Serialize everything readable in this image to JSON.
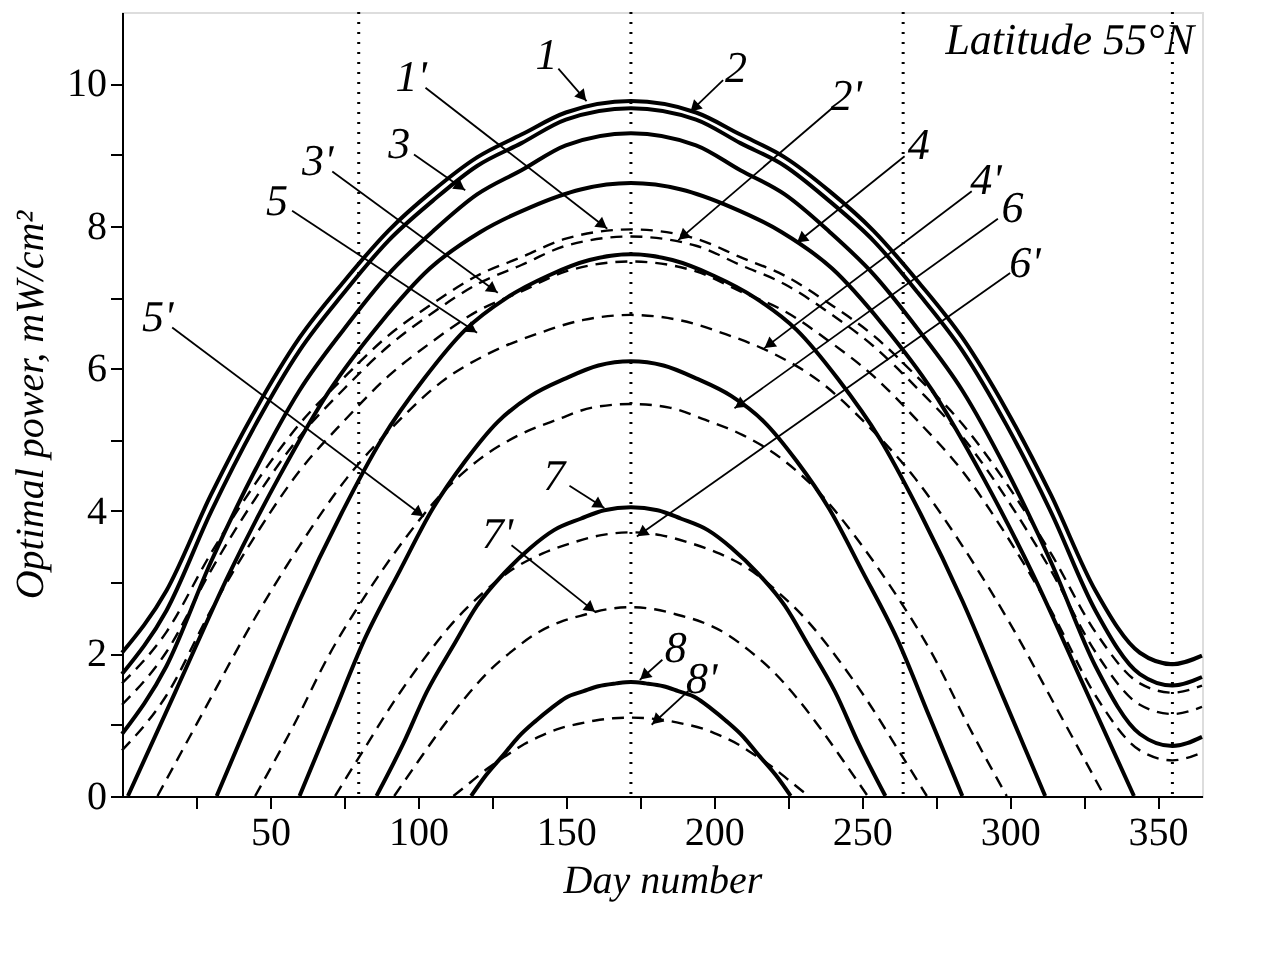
{
  "chart_data": {
    "type": "line",
    "xlabel": "Day number",
    "ylabel": "Optimal power, mW/cm²",
    "x": [
      0,
      15,
      30,
      45,
      60,
      75,
      90,
      105,
      120,
      135,
      150,
      172,
      194,
      209,
      224,
      239,
      254,
      269,
      284,
      299,
      314,
      329,
      344,
      355,
      365
    ],
    "xlim": [
      0,
      365
    ],
    "xticks": [
      {
        "value": 25,
        "label": null
      },
      50,
      {
        "value": 75,
        "label": null
      },
      100,
      {
        "value": 125,
        "label": null
      },
      150,
      {
        "value": 175,
        "label": null
      },
      200,
      {
        "value": 225,
        "label": null
      },
      250,
      {
        "value": 275,
        "label": null
      },
      300,
      {
        "value": 325,
        "label": null
      },
      350
    ],
    "ylim": [
      0,
      11
    ],
    "yticks": [
      0,
      {
        "value": 1,
        "label": null
      },
      2,
      {
        "value": 3,
        "label": null
      },
      4,
      {
        "value": 5,
        "label": null
      },
      6,
      {
        "value": 7,
        "label": null
      },
      8,
      {
        "value": 9,
        "label": null
      },
      10
    ],
    "grid": false,
    "series": [
      {
        "color": "#000000",
        "line_style": "solid",
        "values": [
          2.01,
          2.88,
          4.22,
          5.41,
          6.43,
          7.22,
          7.93,
          8.49,
          8.96,
          9.28,
          9.59,
          9.75,
          9.59,
          9.28,
          8.96,
          8.49,
          7.93,
          7.22,
          6.43,
          5.41,
          4.22,
          2.88,
          2.01,
          1.85,
          1.97
        ]
      },
      {
        "color": "#000000",
        "line_style": "solid",
        "values": [
          1.71,
          2.6,
          3.98,
          5.2,
          6.25,
          7.06,
          7.79,
          8.35,
          8.84,
          9.16,
          9.49,
          9.65,
          9.49,
          9.16,
          8.84,
          8.35,
          7.79,
          7.06,
          6.25,
          5.2,
          3.98,
          2.6,
          1.71,
          1.55,
          1.67
        ]
      },
      {
        "color": "#000000",
        "line_style": "solid",
        "values": [
          0.87,
          1.82,
          3.28,
          4.57,
          5.69,
          6.55,
          7.32,
          7.92,
          8.44,
          8.78,
          9.13,
          9.3,
          9.13,
          8.78,
          8.44,
          7.92,
          7.32,
          6.55,
          5.69,
          4.57,
          3.28,
          1.82,
          0.87,
          0.7,
          0.83
        ]
      },
      {
        "color": "#000000",
        "line_style": "solid",
        "x": [
          2,
          19,
          36,
          53,
          70,
          87,
          104,
          121,
          138,
          155,
          172,
          189,
          206,
          223,
          240,
          257,
          274,
          291,
          308,
          325,
          342
        ],
        "values": [
          0,
          1.55,
          3.1,
          4.47,
          5.68,
          6.62,
          7.4,
          7.91,
          8.26,
          8.51,
          8.6,
          8.51,
          8.26,
          7.91,
          7.4,
          6.62,
          5.68,
          4.47,
          3.1,
          1.55,
          0
        ]
      },
      {
        "color": "#000000",
        "line_style": "solid",
        "x": [
          32,
          46,
          60,
          74,
          88,
          102,
          116,
          130,
          144,
          158,
          172,
          186,
          200,
          214,
          228,
          242,
          256,
          270,
          284,
          298,
          312
        ],
        "values": [
          0,
          1.37,
          2.74,
          3.95,
          5.02,
          5.85,
          6.54,
          6.99,
          7.3,
          7.52,
          7.6,
          7.52,
          7.3,
          6.99,
          6.54,
          5.85,
          5.02,
          3.95,
          2.74,
          1.37,
          0
        ]
      },
      {
        "color": "#000000",
        "line_style": "solid",
        "x": [
          60,
          71,
          82,
          94,
          105,
          116,
          127,
          138,
          150,
          161,
          172,
          183,
          194,
          206,
          217,
          228,
          239,
          250,
          262,
          273,
          284
        ],
        "values": [
          0,
          1.1,
          2.2,
          3.17,
          4.03,
          4.7,
          5.25,
          5.61,
          5.86,
          6.04,
          6.1,
          6.04,
          5.86,
          5.61,
          5.25,
          4.7,
          4.03,
          3.17,
          2.2,
          1.1,
          0
        ]
      },
      {
        "color": "#000000",
        "line_style": "solid",
        "x": [
          86,
          95,
          103,
          112,
          120,
          129,
          138,
          146,
          155,
          163,
          172,
          181,
          189,
          198,
          206,
          215,
          224,
          232,
          241,
          249,
          258
        ],
        "values": [
          0,
          0.73,
          1.46,
          2.11,
          2.67,
          3.12,
          3.48,
          3.73,
          3.89,
          4.01,
          4.05,
          4.01,
          3.89,
          3.73,
          3.48,
          3.12,
          2.67,
          2.11,
          1.46,
          0.73,
          0
        ]
      },
      {
        "color": "#000000",
        "line_style": "solid",
        "x": [
          118,
          123,
          129,
          134,
          140,
          145,
          150,
          156,
          161,
          167,
          172,
          177,
          183,
          188,
          194,
          199,
          204,
          210,
          215,
          221,
          226
        ],
        "values": [
          0,
          0.29,
          0.58,
          0.83,
          1.06,
          1.23,
          1.38,
          1.47,
          1.54,
          1.58,
          1.6,
          1.58,
          1.54,
          1.47,
          1.38,
          1.23,
          1.06,
          0.83,
          0.58,
          0.29,
          0
        ]
      },
      {
        "color": "#000000",
        "line_style": "dashed",
        "values": [
          1.58,
          2.3,
          3.4,
          4.38,
          5.22,
          5.87,
          6.46,
          6.91,
          7.3,
          7.56,
          7.82,
          7.95,
          7.82,
          7.56,
          7.3,
          6.91,
          6.46,
          5.87,
          5.22,
          4.38,
          3.4,
          2.3,
          1.58,
          1.45,
          1.55
        ]
      },
      {
        "color": "#000000",
        "line_style": "dashed",
        "values": [
          1.28,
          2.02,
          3.16,
          4.17,
          5.04,
          5.71,
          6.31,
          6.78,
          7.18,
          7.45,
          7.72,
          7.85,
          7.72,
          7.45,
          7.18,
          6.78,
          6.31,
          5.71,
          5.04,
          4.17,
          3.16,
          2.02,
          1.28,
          1.15,
          1.25
        ]
      },
      {
        "color": "#000000",
        "line_style": "dashed",
        "values": [
          0.64,
          1.41,
          2.6,
          3.65,
          4.56,
          5.26,
          5.89,
          6.38,
          6.8,
          7.08,
          7.36,
          7.5,
          7.36,
          7.08,
          6.8,
          6.38,
          5.89,
          5.26,
          4.56,
          3.65,
          2.6,
          1.41,
          0.64,
          0.5,
          0.61
        ]
      },
      {
        "color": "#000000",
        "line_style": "dashed",
        "x": [
          12,
          28,
          44,
          60,
          76,
          92,
          108,
          124,
          140,
          156,
          172,
          188,
          204,
          220,
          236,
          252,
          268,
          284,
          300,
          316,
          332
        ],
        "values": [
          0,
          1.22,
          2.43,
          3.51,
          4.46,
          5.2,
          5.81,
          6.21,
          6.48,
          6.68,
          6.75,
          6.68,
          6.48,
          6.21,
          5.81,
          5.2,
          4.46,
          3.51,
          2.43,
          1.22,
          0
        ]
      },
      {
        "color": "#000000",
        "line_style": "dashed",
        "x": [
          45,
          58,
          70,
          83,
          96,
          108,
          121,
          134,
          147,
          159,
          172,
          185,
          197,
          210,
          223,
          236,
          248,
          261,
          274,
          286,
          299
        ],
        "values": [
          0,
          0.99,
          1.98,
          2.86,
          3.63,
          4.24,
          4.73,
          5.06,
          5.28,
          5.45,
          5.5,
          5.45,
          5.28,
          5.06,
          4.73,
          4.24,
          3.63,
          2.86,
          1.98,
          0.99,
          0
        ]
      },
      {
        "color": "#000000",
        "line_style": "dashed",
        "x": [
          72,
          82,
          92,
          102,
          112,
          122,
          132,
          142,
          152,
          162,
          172,
          182,
          192,
          202,
          212,
          222,
          232,
          242,
          252,
          262,
          272
        ],
        "values": [
          0,
          0.67,
          1.33,
          1.92,
          2.44,
          2.85,
          3.18,
          3.4,
          3.55,
          3.66,
          3.7,
          3.66,
          3.55,
          3.4,
          3.18,
          2.85,
          2.44,
          1.92,
          1.33,
          0.67,
          0
        ]
      },
      {
        "color": "#000000",
        "line_style": "dashed",
        "x": [
          92,
          100,
          108,
          116,
          124,
          132,
          140,
          148,
          156,
          164,
          172,
          180,
          188,
          196,
          204,
          212,
          220,
          228,
          236,
          244,
          252
        ],
        "values": [
          0,
          0.48,
          0.95,
          1.38,
          1.75,
          2.04,
          2.28,
          2.44,
          2.54,
          2.62,
          2.65,
          2.62,
          2.54,
          2.44,
          2.28,
          2.04,
          1.75,
          1.38,
          0.95,
          0.48,
          0
        ]
      },
      {
        "color": "#000000",
        "line_style": "dashed",
        "x": [
          112,
          118,
          124,
          130,
          136,
          142,
          148,
          154,
          160,
          166,
          172,
          178,
          184,
          190,
          196,
          202,
          208,
          214,
          220,
          226,
          232
        ],
        "values": [
          0,
          0.2,
          0.4,
          0.57,
          0.73,
          0.85,
          0.95,
          1.01,
          1.06,
          1.09,
          1.1,
          1.09,
          1.06,
          1.01,
          0.95,
          0.85,
          0.73,
          0.57,
          0.4,
          0.2,
          0
        ]
      }
    ],
    "ref_lines": [
      {
        "axis": "x",
        "value": 80,
        "line_style": "dotted"
      },
      {
        "axis": "x",
        "value": 172,
        "line_style": "dotted"
      },
      {
        "axis": "x",
        "value": 264,
        "line_style": "dotted"
      },
      {
        "axis": "x",
        "value": 355,
        "line_style": "dotted"
      }
    ],
    "annotations": [
      "Latitude 55°N",
      {
        "text": "1",
        "x": 157,
        "y": 9.75
      },
      {
        "text": "2",
        "x": 192,
        "y": 9.6
      },
      {
        "text": "1'",
        "x": 164,
        "y": 7.96
      },
      {
        "text": "2'",
        "x": 188,
        "y": 7.8
      },
      {
        "text": "3",
        "x": 116,
        "y": 8.5
      },
      {
        "text": "3'",
        "x": 127,
        "y": 7.06
      },
      {
        "text": "4",
        "x": 228,
        "y": 7.76
      },
      {
        "text": "4'",
        "x": 217,
        "y": 6.28
      },
      {
        "text": "5",
        "x": 120,
        "y": 6.5
      },
      {
        "text": "6",
        "x": 207,
        "y": 5.44
      },
      {
        "text": "6'",
        "x": 174,
        "y": 3.64
      },
      {
        "text": "5'",
        "x": 102,
        "y": 3.92
      },
      {
        "text": "7",
        "x": 163,
        "y": 4.04
      },
      {
        "text": "7'",
        "x": 160,
        "y": 2.58
      },
      {
        "text": "8",
        "x": 175,
        "y": 1.63
      },
      {
        "text": "8'",
        "x": 179,
        "y": 1.0
      }
    ]
  }
}
